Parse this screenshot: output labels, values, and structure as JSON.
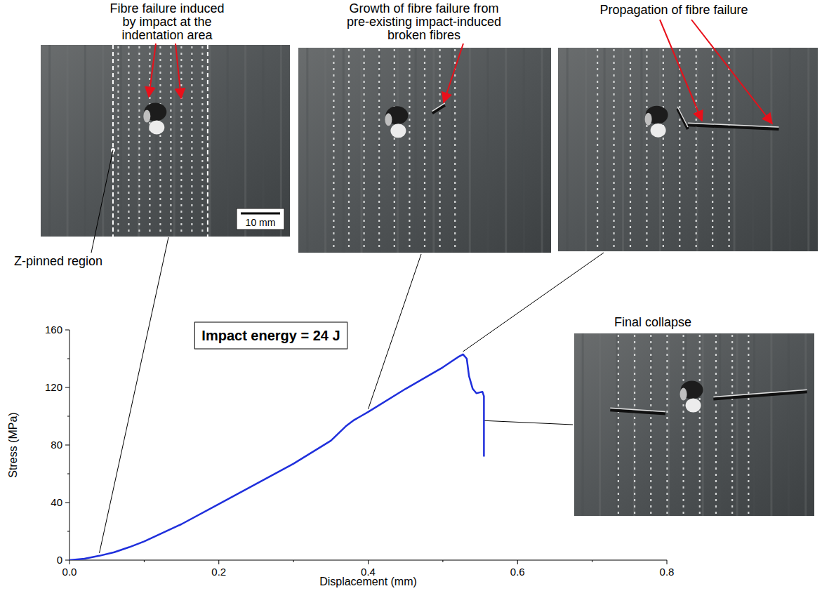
{
  "chart_data": {
    "type": "line",
    "x_label": "Displacement (mm)",
    "y_label": "Stress (MPa)",
    "x": [
      0,
      0.02,
      0.04,
      0.06,
      0.08,
      0.1,
      0.15,
      0.2,
      0.25,
      0.3,
      0.35,
      0.37,
      0.38,
      0.39,
      0.4,
      0.45,
      0.5,
      0.52,
      0.527,
      0.532,
      0.535,
      0.54,
      0.545,
      0.553,
      0.555,
      0.555
    ],
    "values": [
      0,
      1,
      3,
      5.5,
      9,
      13,
      25,
      39,
      53,
      67,
      83,
      93,
      97,
      100,
      103,
      119,
      134,
      141,
      143,
      140,
      128,
      119,
      116,
      117,
      114,
      72
    ],
    "color": "#1f2fdc",
    "xlim": [
      0,
      0.8
    ],
    "xticks": [
      {
        "value": 0,
        "label": "0.0"
      },
      0.2,
      0.4,
      0.6,
      0.8
    ],
    "ylim": [
      0,
      160
    ],
    "yticks": [
      0,
      40,
      80,
      120,
      160
    ],
    "annotations": [
      {
        "text": "Impact energy = 24 J"
      }
    ]
  },
  "panels": [
    {
      "caption_lines": [
        "Fibre failure induced",
        "by impact at the",
        "indentation area"
      ],
      "displacement": 0.04,
      "stress": 3,
      "region_label": "Z-pinned region",
      "scale_bar": "10 mm"
    },
    {
      "caption_lines": [
        "Growth of fibre failure from",
        "pre-existing impact-induced",
        "broken fibres"
      ],
      "displacement": 0.4,
      "stress": 103
    },
    {
      "caption_lines": [
        "Propagation of fibre failure"
      ],
      "displacement": 0.527,
      "stress": 143
    },
    {
      "caption_lines": [
        "Final collapse"
      ],
      "displacement": 0.555,
      "stress": 95
    }
  ]
}
